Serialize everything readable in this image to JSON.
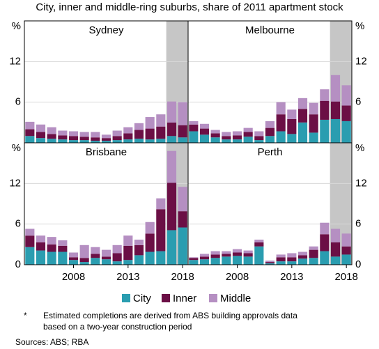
{
  "subtitle": "City, inner and middle-ring suburbs, share of 2011 apartment stock",
  "notes": [
    "*",
    "Estimated completions are derived from ABS building approvals data",
    "based on a two-year construction period"
  ],
  "sources": "Sources:   ABS; RBA",
  "chart_data": [
    {
      "type": "bar",
      "stacked": true,
      "title": "Sydney",
      "y_unit": "%",
      "x": [
        2004,
        2005,
        2006,
        2007,
        2008,
        2009,
        2010,
        2011,
        2012,
        2013,
        2014,
        2015,
        2016,
        2017,
        2018
      ],
      "xlim": [
        2003.5,
        2018.5
      ],
      "xticks": [],
      "ylim": [
        0,
        18
      ],
      "yticks": [
        6,
        12
      ],
      "grid": true,
      "shaded": [
        2016.5,
        2018.5
      ],
      "series": [
        {
          "name": "City",
          "color": "#2a9db0",
          "values": [
            1.0,
            0.7,
            0.6,
            0.5,
            0.4,
            0.4,
            0.3,
            0.3,
            0.4,
            0.5,
            0.6,
            0.5,
            0.6,
            1.0,
            0.8
          ]
        },
        {
          "name": "Inner",
          "color": "#6b0f45",
          "values": [
            1.0,
            0.9,
            0.7,
            0.6,
            0.6,
            0.5,
            0.5,
            0.4,
            0.6,
            0.9,
            1.3,
            1.6,
            1.8,
            2.0,
            1.8
          ]
        },
        {
          "name": "Middle",
          "color": "#b58fc2",
          "values": [
            1.1,
            1.1,
            1.0,
            0.7,
            0.7,
            0.7,
            0.8,
            0.5,
            0.8,
            0.9,
            1.0,
            1.7,
            1.8,
            3.1,
            3.4
          ]
        }
      ]
    },
    {
      "type": "bar",
      "stacked": true,
      "title": "Melbourne",
      "y_unit": "%",
      "x": [
        2004,
        2005,
        2006,
        2007,
        2008,
        2009,
        2010,
        2011,
        2012,
        2013,
        2014,
        2015,
        2016,
        2017,
        2018
      ],
      "xlim": [
        2003.5,
        2018.5
      ],
      "xticks": [],
      "ylim": [
        0,
        18
      ],
      "yticks": [
        6,
        12
      ],
      "grid": true,
      "shaded": [
        2016.5,
        2018.5
      ],
      "series": [
        {
          "name": "City",
          "color": "#2a9db0",
          "values": [
            1.7,
            1.2,
            0.8,
            0.5,
            0.5,
            0.9,
            0.4,
            1.0,
            1.7,
            1.3,
            3.0,
            1.5,
            3.4,
            3.5,
            3.2
          ]
        },
        {
          "name": "Inner",
          "color": "#6b0f45",
          "values": [
            1.0,
            0.9,
            0.6,
            0.5,
            0.6,
            0.7,
            0.6,
            1.2,
            2.5,
            2.2,
            2.0,
            2.7,
            2.8,
            2.6,
            2.3
          ]
        },
        {
          "name": "Middle",
          "color": "#b58fc2",
          "values": [
            0.5,
            0.7,
            0.5,
            0.6,
            0.6,
            0.6,
            0.7,
            1.0,
            1.8,
            1.4,
            1.6,
            1.7,
            1.7,
            3.9,
            3.0
          ]
        }
      ]
    },
    {
      "type": "bar",
      "stacked": true,
      "title": "Brisbane",
      "y_unit": "%",
      "x": [
        2004,
        2005,
        2006,
        2007,
        2008,
        2009,
        2010,
        2011,
        2012,
        2013,
        2014,
        2015,
        2016,
        2017,
        2018
      ],
      "xlim": [
        2003.5,
        2018.5
      ],
      "xticks": [
        2008,
        2013,
        2018
      ],
      "ylim": [
        0,
        18
      ],
      "yticks": [
        0,
        6,
        12
      ],
      "grid": true,
      "shaded": [
        2016.5,
        2018.5
      ],
      "series": [
        {
          "name": "City",
          "color": "#2a9db0",
          "values": [
            2.6,
            2.1,
            1.9,
            1.9,
            0.7,
            0.4,
            1.0,
            0.8,
            0.5,
            0.7,
            1.4,
            1.9,
            2.0,
            5.1,
            5.5
          ]
        },
        {
          "name": "Inner",
          "color": "#6b0f45",
          "values": [
            1.7,
            1.2,
            1.1,
            0.9,
            0.4,
            0.6,
            0.6,
            0.4,
            1.2,
            2.1,
            1.5,
            2.7,
            6.2,
            7.0,
            2.4
          ]
        },
        {
          "name": "Middle",
          "color": "#b58fc2",
          "values": [
            1.0,
            1.0,
            1.1,
            0.8,
            0.7,
            1.9,
            1.0,
            1.0,
            1.2,
            1.5,
            0.8,
            1.7,
            1.6,
            4.7,
            3.6
          ]
        }
      ]
    },
    {
      "type": "bar",
      "stacked": true,
      "title": "Perth",
      "y_unit": "%",
      "x": [
        2004,
        2005,
        2006,
        2007,
        2008,
        2009,
        2010,
        2011,
        2012,
        2013,
        2014,
        2015,
        2016,
        2017,
        2018
      ],
      "xlim": [
        2003.5,
        2018.5
      ],
      "xticks": [
        2008,
        2013,
        2018
      ],
      "ylim": [
        0,
        18
      ],
      "yticks": [
        0,
        6,
        12
      ],
      "grid": true,
      "shaded": [
        2016.5,
        2018.5
      ],
      "series": [
        {
          "name": "City",
          "color": "#2a9db0",
          "values": [
            0.7,
            0.8,
            1.0,
            1.2,
            1.3,
            1.2,
            2.7,
            0.2,
            0.5,
            0.5,
            0.9,
            1.0,
            2.0,
            1.2,
            1.5
          ]
        },
        {
          "name": "Inner",
          "color": "#6b0f45",
          "values": [
            0.3,
            0.4,
            0.5,
            0.4,
            0.5,
            0.5,
            0.6,
            0.2,
            0.6,
            0.6,
            0.5,
            1.2,
            2.5,
            2.1,
            1.2
          ]
        },
        {
          "name": "Middle",
          "color": "#b58fc2",
          "values": [
            0.1,
            0.4,
            0.5,
            0.4,
            0.5,
            0.4,
            0.4,
            0.2,
            0.4,
            0.6,
            0.5,
            0.5,
            1.7,
            2.0,
            1.9
          ]
        }
      ]
    }
  ]
}
